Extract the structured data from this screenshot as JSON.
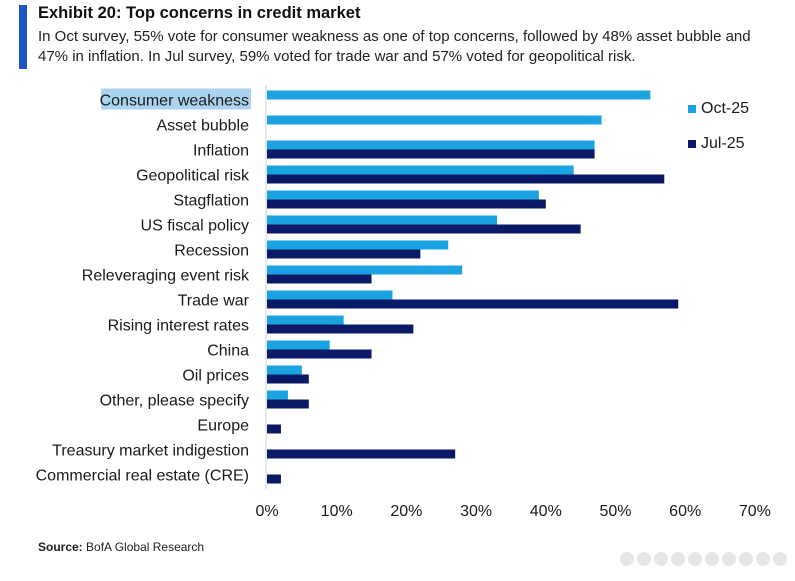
{
  "header": {
    "title": "Exhibit 20: Top concerns in credit market",
    "subtitle": "In Oct survey, 55% vote for consumer weakness as one of top concerns, followed by 48% asset bubble and 47% in inflation. In Jul survey, 59% voted for trade war and 57% voted for geopolitical risk."
  },
  "footer": {
    "source_label": "Source:",
    "source_text": "BofA Global Research"
  },
  "colors": {
    "oct": "#1aa3e0",
    "jul": "#0a1a66",
    "highlight": "#a9d3ee",
    "accent": "#1a56c8"
  },
  "chart_data": {
    "type": "bar",
    "orientation": "horizontal",
    "title": "Top concerns in credit market",
    "xlabel": "",
    "ylabel": "",
    "xlim": [
      0,
      70
    ],
    "ticks": [
      "0%",
      "10%",
      "20%",
      "30%",
      "40%",
      "50%",
      "60%",
      "70%"
    ],
    "tick_values": [
      0,
      10,
      20,
      30,
      40,
      50,
      60,
      70
    ],
    "grid": false,
    "legend_position": "top-right",
    "highlighted_category": "Consumer weakness",
    "categories": [
      "Consumer weakness",
      "Asset bubble",
      "Inflation",
      "Geopolitical risk",
      "Stagflation",
      "US fiscal policy",
      "Recession",
      "Releveraging event risk",
      "Trade war",
      "Rising interest rates",
      "China",
      "Oil prices",
      "Other, please specify",
      "Europe",
      "Treasury market indigestion",
      "Commercial real estate (CRE)"
    ],
    "series": [
      {
        "name": "Oct-25",
        "values": [
          55,
          48,
          47,
          44,
          39,
          33,
          26,
          28,
          18,
          11,
          9,
          5,
          3,
          null,
          null,
          null
        ]
      },
      {
        "name": "Jul-25",
        "values": [
          null,
          null,
          47,
          57,
          40,
          45,
          22,
          15,
          59,
          21,
          15,
          6,
          6,
          2,
          27,
          2
        ]
      }
    ]
  }
}
